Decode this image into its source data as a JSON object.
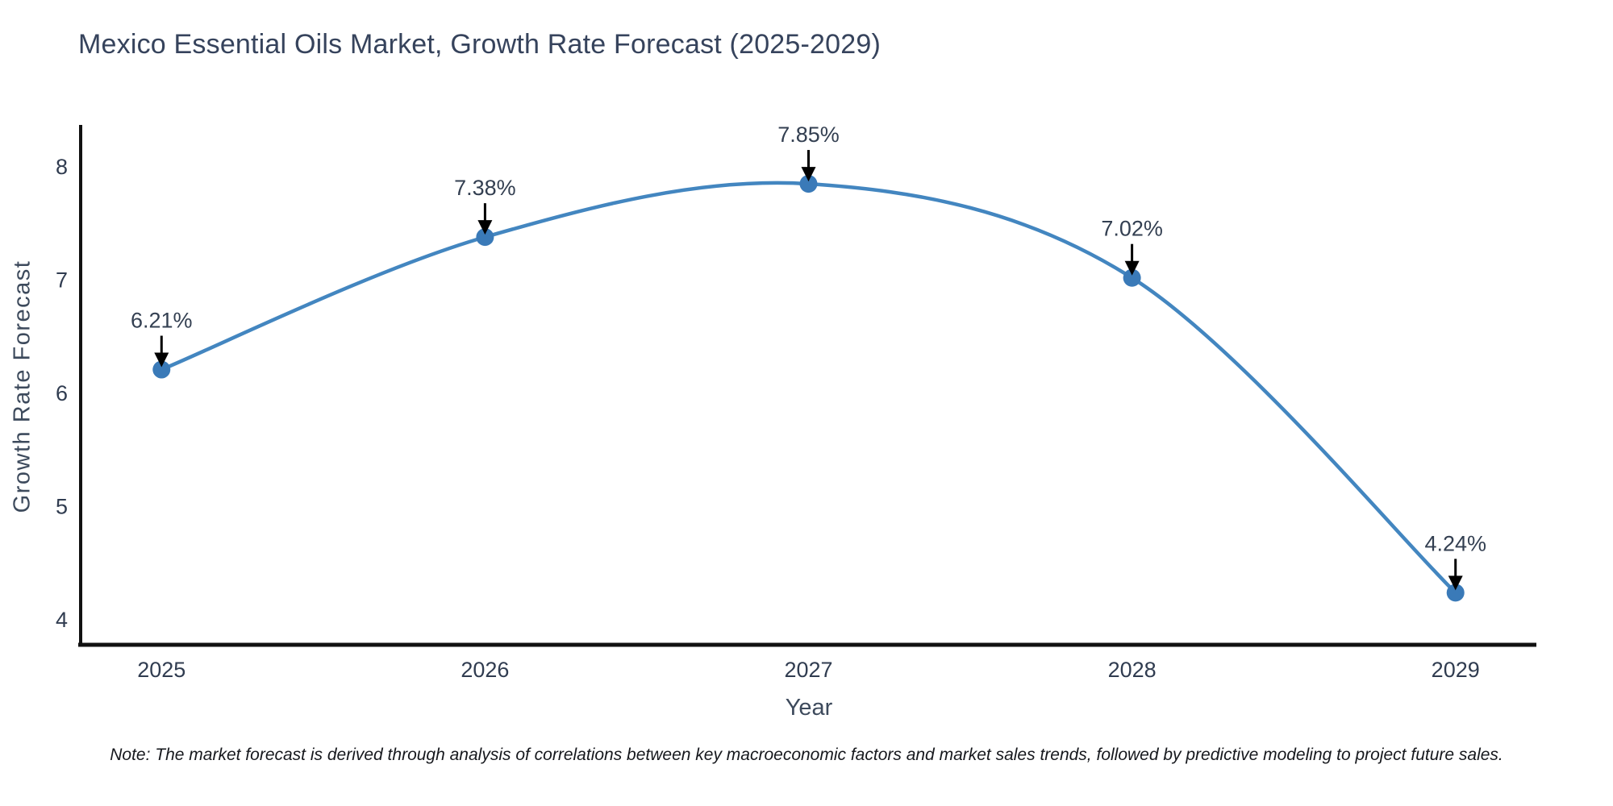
{
  "note": "Note: The market forecast is derived through analysis of correlations between key macroeconomic factors and market sales trends, followed by predictive modeling to project future sales.",
  "chart_data": {
    "type": "line",
    "title": "Mexico Essential Oils Market, Growth Rate Forecast (2025-2029)",
    "x": [
      2025,
      2026,
      2027,
      2028,
      2029
    ],
    "values": [
      6.21,
      7.38,
      7.85,
      7.02,
      4.24
    ],
    "point_labels": [
      "6.21%",
      "7.38%",
      "7.85%",
      "7.02%",
      "4.24%"
    ],
    "xlabel": "Year",
    "ylabel": "Growth Rate Forecast",
    "xticks": [
      "2025",
      "2026",
      "2027",
      "2028",
      "2029"
    ],
    "yticks": [
      4,
      5,
      6,
      7,
      8
    ],
    "xlim": [
      2024.75,
      2029.25
    ],
    "ylim": [
      3.78,
      8.37
    ],
    "grid": false,
    "legend": false,
    "line_shape": "spline",
    "annotation_style": "value-label-with-down-arrow",
    "colors": {
      "line": "#4386c0",
      "marker": "#3a7ab8",
      "axis": "#111111",
      "arrow": "#000000",
      "title": "#36435c",
      "tick": "#303c50",
      "annotation": "#333f51"
    }
  }
}
